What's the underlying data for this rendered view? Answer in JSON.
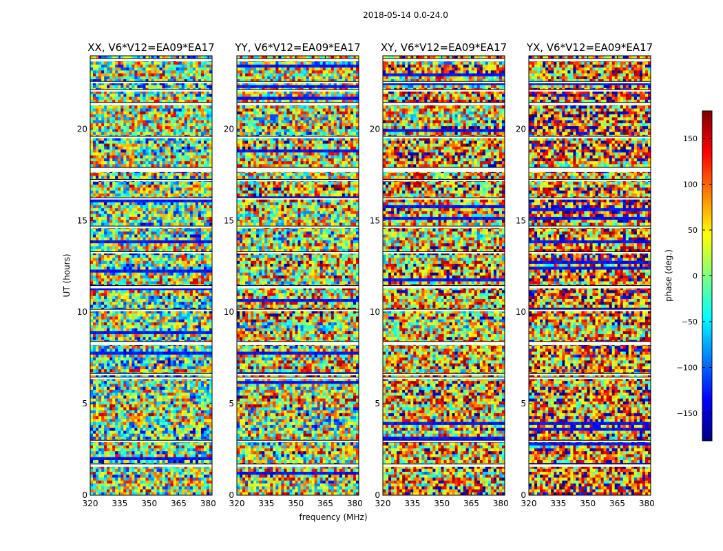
{
  "figure": {
    "suptitle": "2018-05-14 0.0-24.0",
    "xlabel": "frequency (MHz)",
    "ylabel": "UT (hours)"
  },
  "colorbar": {
    "label": "phase (deg.)",
    "range": [
      -180,
      180
    ],
    "ticks": [
      "150",
      "100",
      "50",
      "0",
      "−50",
      "−100",
      "−150"
    ],
    "tick_values": [
      150,
      100,
      50,
      0,
      -50,
      -100,
      -150
    ],
    "colormap": "jet",
    "colors": [
      "#00007f",
      "#0000ff",
      "#007fff",
      "#00ffff",
      "#7fff7f",
      "#ffff00",
      "#ff7f00",
      "#ff0000",
      "#7f0000"
    ]
  },
  "chart_data": {
    "type": "heatmap",
    "title": "2018-05-14 0.0-24.0",
    "xlabel": "frequency (MHz)",
    "ylabel": "UT (hours)",
    "xlim": [
      320,
      382
    ],
    "ylim": [
      0,
      24
    ],
    "xticks": [
      320,
      335,
      350,
      365,
      380
    ],
    "xtick_labels": [
      "320",
      "335",
      "350",
      "365",
      "380"
    ],
    "yticks": [
      0,
      5,
      10,
      15,
      20
    ],
    "ytick_labels": [
      "0",
      "5",
      "10",
      "15",
      "20"
    ],
    "value_label": "phase (deg.)",
    "value_range": [
      -180,
      180
    ],
    "flagged_ut_hours": [
      [
        23.7,
        23.85
      ],
      [
        22.5,
        22.6
      ],
      [
        22.05,
        22.15
      ],
      [
        21.3,
        21.45
      ],
      [
        19.5,
        19.6
      ],
      [
        17.65,
        17.9
      ],
      [
        17.15,
        17.25
      ],
      [
        16.15,
        16.25
      ],
      [
        14.6,
        14.7
      ],
      [
        13.2,
        13.3
      ],
      [
        11.3,
        11.45
      ],
      [
        10.05,
        10.15
      ],
      [
        8.2,
        8.4
      ],
      [
        6.55,
        6.65
      ],
      [
        6.35,
        6.45
      ],
      [
        2.9,
        3.0
      ],
      [
        1.55,
        1.7
      ]
    ],
    "panels": [
      {
        "title": "XX, V6*V12=EA09*EA17"
      },
      {
        "title": "YY, V6*V12=EA09*EA17"
      },
      {
        "title": "XY, V6*V12=EA09*EA17"
      },
      {
        "title": "YX, V6*V12=EA09*EA17"
      }
    ]
  }
}
